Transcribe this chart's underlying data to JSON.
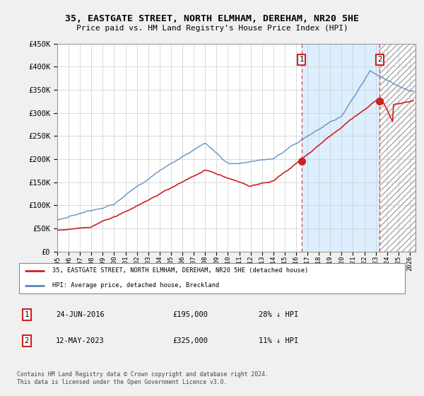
{
  "title": "35, EASTGATE STREET, NORTH ELMHAM, DEREHAM, NR20 5HE",
  "subtitle": "Price paid vs. HM Land Registry's House Price Index (HPI)",
  "ylim": [
    0,
    450000
  ],
  "yticks": [
    0,
    50000,
    100000,
    150000,
    200000,
    250000,
    300000,
    350000,
    400000,
    450000
  ],
  "ytick_labels": [
    "£0",
    "£50K",
    "£100K",
    "£150K",
    "£200K",
    "£250K",
    "£300K",
    "£350K",
    "£400K",
    "£450K"
  ],
  "hpi_color": "#5588bb",
  "price_color": "#cc2222",
  "sale1_year": 2016.47,
  "sale1_price": 195000,
  "sale1_date": "24-JUN-2016",
  "sale1_pct": "28% ↓ HPI",
  "sale2_year": 2023.36,
  "sale2_price": 325000,
  "sale2_date": "12-MAY-2023",
  "sale2_pct": "11% ↓ HPI",
  "legend_label1": "35, EASTGATE STREET, NORTH ELMHAM, DEREHAM, NR20 5HE (detached house)",
  "legend_label2": "HPI: Average price, detached house, Breckland",
  "footer": "Contains HM Land Registry data © Crown copyright and database right 2024.\nThis data is licensed under the Open Government Licence v3.0.",
  "background_color": "#f0f0f0",
  "plot_bg_color": "#ffffff",
  "shade_color": "#ddeeff",
  "xmin": 1995,
  "xmax": 2026.5
}
